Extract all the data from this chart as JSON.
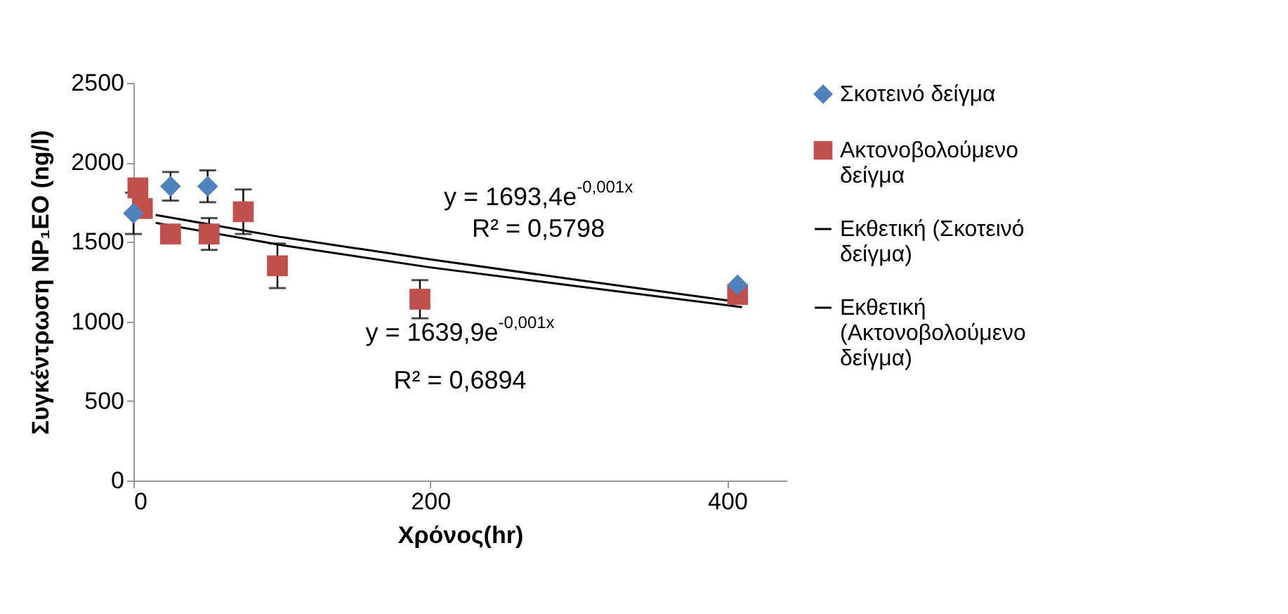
{
  "chart_data": {
    "type": "scatter",
    "xlabel": "Χρόνος(hr)",
    "ylabel": "Συγκέντρωση NP₁EO  (ng/l)",
    "xlim": [
      0,
      440
    ],
    "xticks": [
      0,
      200,
      400
    ],
    "ylim": [
      0,
      2500
    ],
    "yticks": [
      0,
      500,
      1000,
      1500,
      2000,
      2500
    ],
    "grid": false,
    "legend": "right",
    "series": [
      {
        "name": "Σκοτεινό δείγμα",
        "color": "#4f81bd",
        "marker": "diamond",
        "x": [
          0,
          25,
          50,
          407
        ],
        "values": [
          1680,
          1850,
          1850,
          1230
        ],
        "errors": [
          130,
          90,
          100,
          null
        ]
      },
      {
        "name": "Ακτονοβολούμενο δείγμα",
        "color": "#c0504d",
        "marker": "square",
        "x": [
          3,
          6,
          25,
          51,
          74,
          97,
          193,
          407
        ],
        "values": [
          1840,
          1710,
          1550,
          1550,
          1690,
          1350,
          1140,
          1170
        ],
        "errors": [
          null,
          null,
          null,
          100,
          140,
          140,
          120,
          null
        ]
      },
      {
        "name": "Εκθετική (Σκοτεινό δείγμα)",
        "type": "line",
        "color": "#000000",
        "x": [
          15,
          100,
          200,
          300,
          410
        ],
        "values": [
          1670,
          1530,
          1390,
          1260,
          1120
        ]
      },
      {
        "name": "Εκθετική (Ακτονοβολούμενο δείγμα)",
        "type": "line",
        "color": "#000000",
        "x": [
          15,
          100,
          200,
          300,
          410
        ],
        "values": [
          1620,
          1480,
          1340,
          1220,
          1090
        ]
      }
    ],
    "annotations": [
      "y = 1693,4e$^{-0,001x}$",
      "R² = 0,5798",
      "y = 1639,9e$^{-0,001x}$",
      "R² = 0,6894"
    ]
  }
}
